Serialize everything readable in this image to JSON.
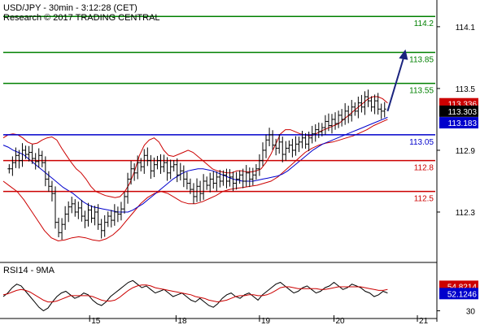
{
  "header": {
    "line1": "USD/JPY - 30min - 3:12:28 (CET)",
    "line2": "Research © 2017 TRADING CENTRAL"
  },
  "chart_data": [
    {
      "type": "candlestick",
      "title": "",
      "y_ticks": [
        "114.1",
        "113.5",
        "112.9",
        "112.3"
      ],
      "y_tick_values": [
        114.1,
        113.5,
        112.9,
        112.3
      ],
      "ylim": [
        111.85,
        114.32
      ],
      "x_ticks": [
        "15",
        "18",
        "19",
        "20",
        "21"
      ],
      "x_tick_positions": [
        29,
        58,
        86,
        111,
        139
      ],
      "xlim": [
        0,
        145
      ],
      "levels": [
        {
          "label": "114.2",
          "value": 114.2,
          "color": "#008000"
        },
        {
          "label": "113.85",
          "value": 113.85,
          "color": "#008000"
        },
        {
          "label": "113.55",
          "value": 113.55,
          "color": "#008000"
        },
        {
          "label": "113.05",
          "value": 113.05,
          "color": "#0000cc"
        },
        {
          "label": "112.8",
          "value": 112.8,
          "color": "#cc0000"
        },
        {
          "label": "112.5",
          "value": 112.5,
          "color": "#cc0000"
        }
      ],
      "price_badges": [
        {
          "label": "113.336",
          "value": 113.336,
          "color": "#cc0000"
        },
        {
          "label": "113.303",
          "value": 113.303,
          "color": "#000000"
        },
        {
          "label": "113.183",
          "value": 113.183,
          "color": "#0000cc"
        }
      ],
      "close_series": [
        112.72,
        112.78,
        112.85,
        112.8,
        112.9,
        112.86,
        112.88,
        112.82,
        112.79,
        112.85,
        112.78,
        112.62,
        112.55,
        112.48,
        112.2,
        112.1,
        112.18,
        112.28,
        112.35,
        112.38,
        112.3,
        112.34,
        112.26,
        112.22,
        112.32,
        112.24,
        112.3,
        112.18,
        112.12,
        112.2,
        112.26,
        112.22,
        112.3,
        112.28,
        112.33,
        112.45,
        112.62,
        112.72,
        112.68,
        112.78,
        112.74,
        112.85,
        112.8,
        112.7,
        112.76,
        112.8,
        112.74,
        112.78,
        112.68,
        112.74,
        112.76,
        112.66,
        112.7,
        112.62,
        112.58,
        112.52,
        112.45,
        112.55,
        112.48,
        112.6,
        112.56,
        112.62,
        112.58,
        112.64,
        112.6,
        112.66,
        112.6,
        112.64,
        112.58,
        112.62,
        112.66,
        112.6,
        112.68,
        112.62,
        112.66,
        112.72,
        112.8,
        112.9,
        113.0,
        113.05,
        112.95,
        112.92,
        112.98,
        112.86,
        112.92,
        112.95,
        112.9,
        112.96,
        112.98,
        113.02,
        112.96,
        113.02,
        113.06,
        113.1,
        113.08,
        113.12,
        113.18,
        113.14,
        113.2,
        113.16,
        113.24,
        113.2,
        113.28,
        113.24,
        113.32,
        113.28,
        113.36,
        113.32,
        113.42,
        113.38,
        113.32,
        113.38,
        113.3,
        113.28,
        113.3
      ],
      "ma_series": [
        112.95,
        112.93,
        112.9,
        112.88,
        112.86,
        112.82,
        112.78,
        112.74,
        112.7,
        112.66,
        112.62,
        112.58,
        112.54,
        112.51,
        112.48,
        112.44,
        112.4,
        112.37,
        112.35,
        112.34,
        112.33,
        112.32,
        112.31,
        112.3,
        112.3,
        112.3,
        112.32,
        112.35,
        112.38,
        112.42,
        112.46,
        112.5,
        112.54,
        112.58,
        112.62,
        112.65,
        112.68,
        112.7,
        112.71,
        112.72,
        112.72,
        112.71,
        112.7,
        112.68,
        112.66,
        112.64,
        112.62,
        112.61,
        112.6,
        112.6,
        112.6,
        112.61,
        112.62,
        112.63,
        112.64,
        112.65,
        112.67,
        112.7,
        112.74,
        112.78,
        112.82,
        112.86,
        112.9,
        112.93,
        112.96,
        112.98,
        113.0,
        113.02,
        113.04,
        113.06,
        113.08,
        113.1,
        113.12,
        113.14,
        113.16,
        113.18,
        113.2,
        113.22
      ],
      "upper_band": [
        113.02,
        113.05,
        113.06,
        113.05,
        113.02,
        112.98,
        112.96,
        112.97,
        113.0,
        113.02,
        113.03,
        113.0,
        112.92,
        112.85,
        112.78,
        112.72,
        112.68,
        112.62,
        112.55,
        112.5,
        112.48,
        112.46,
        112.45,
        112.44,
        112.45,
        112.5,
        112.58,
        112.7,
        112.85,
        112.95,
        113.0,
        113.02,
        112.98,
        112.9,
        112.85,
        112.84,
        112.86,
        112.88,
        112.9,
        112.88,
        112.84,
        112.8,
        112.76,
        112.72,
        112.7,
        112.69,
        112.68,
        112.68,
        112.7,
        112.7,
        112.69,
        112.69,
        112.7,
        112.72,
        112.78,
        112.86,
        112.96,
        113.06,
        113.1,
        113.1,
        113.08,
        113.06,
        113.05,
        113.04,
        113.05,
        113.08,
        113.1,
        113.12,
        113.14,
        113.16,
        113.2,
        113.24,
        113.28,
        113.32,
        113.36,
        113.4,
        113.42,
        113.42,
        113.4,
        113.36
      ],
      "lower_band": [
        112.6,
        112.55,
        112.5,
        112.42,
        112.32,
        112.22,
        112.12,
        112.05,
        112.02,
        112.03,
        112.05,
        112.06,
        112.05,
        112.03,
        112.02,
        112.04,
        112.08,
        112.14,
        112.22,
        112.3,
        112.38,
        112.44,
        112.48,
        112.5,
        112.48,
        112.44,
        112.4,
        112.38,
        112.38,
        112.4,
        112.43,
        112.46,
        112.5,
        112.52,
        112.53,
        112.54,
        112.55,
        112.56,
        112.58,
        112.6,
        112.64,
        112.7,
        112.76,
        112.82,
        112.88,
        112.92,
        112.95,
        112.97,
        112.98,
        113.0,
        113.02,
        113.04,
        113.07,
        113.1,
        113.14,
        113.17,
        113.2
      ]
    },
    {
      "type": "line",
      "title": "RSI14 - 9MA",
      "y_ticks": [
        "30"
      ],
      "y_tick_values": [
        30
      ],
      "ylim": [
        25,
        78
      ],
      "badges": [
        {
          "label": "54.8214",
          "value": 54.8214,
          "color": "#cc0000"
        },
        {
          "label": "52.1246",
          "value": 52.1246,
          "color": "#0000cc"
        }
      ],
      "series": [
        {
          "name": "RSI14",
          "color": "#000000",
          "values": [
            46,
            50,
            56,
            60,
            58,
            52,
            46,
            40,
            34,
            30,
            33,
            40,
            46,
            50,
            52,
            48,
            44,
            46,
            50,
            48,
            42,
            38,
            36,
            40,
            46,
            50,
            54,
            58,
            62,
            64,
            60,
            56,
            58,
            54,
            50,
            52,
            54,
            50,
            46,
            48,
            50,
            46,
            42,
            40,
            44,
            40,
            36,
            34,
            38,
            44,
            48,
            50,
            46,
            44,
            48,
            50,
            46,
            42,
            48,
            52,
            56,
            60,
            62,
            58,
            54,
            50,
            52,
            56,
            58,
            54,
            50,
            52,
            56,
            58,
            62,
            58,
            54,
            56,
            60,
            58,
            56,
            52,
            50,
            46,
            48,
            52,
            50
          ]
        },
        {
          "name": "9MA",
          "color": "#cc0000",
          "values": [
            48,
            49,
            51,
            53,
            54,
            53,
            51,
            48,
            45,
            42,
            40,
            40,
            41,
            43,
            45,
            47,
            47,
            47,
            47,
            47,
            46,
            44,
            42,
            41,
            41,
            42,
            45,
            49,
            53,
            56,
            58,
            59,
            59,
            58,
            56,
            55,
            54,
            53,
            52,
            51,
            50,
            49,
            48,
            46,
            45,
            44,
            42,
            41,
            40,
            41,
            42,
            44,
            46,
            47,
            47,
            48,
            48,
            47,
            47,
            48,
            50,
            53,
            56,
            57,
            57,
            56,
            55,
            55,
            55,
            55,
            55,
            54,
            54,
            55,
            56,
            57,
            57,
            57,
            57,
            57,
            57,
            56,
            55,
            54,
            53,
            53,
            54
          ]
        }
      ]
    }
  ]
}
